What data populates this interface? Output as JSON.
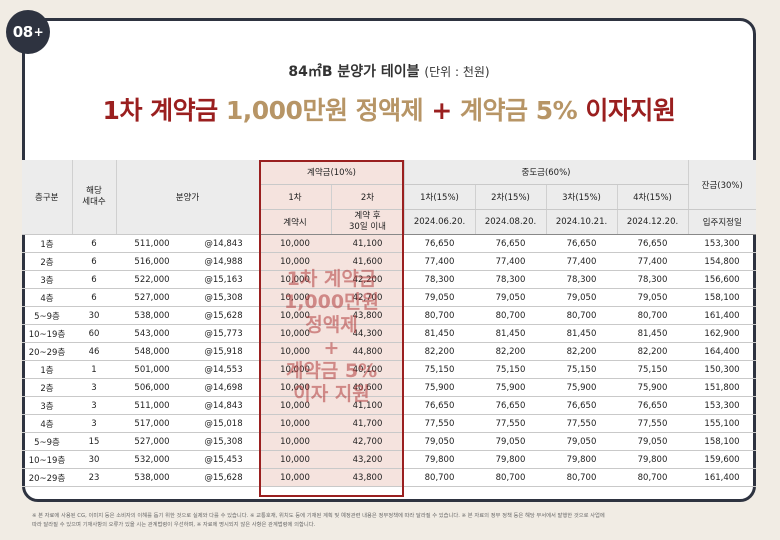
{
  "badge": {
    "number": "08",
    "plus": "+"
  },
  "subtitle": {
    "main": "84㎡B 분양가 테이블",
    "unit": "(단위 : 천원)"
  },
  "headline": {
    "part1": "1차 계약금",
    "part2": "1,000만원 정액제",
    "part3": "+",
    "part4": "계약금 5%",
    "part5": "이자지원"
  },
  "table": {
    "headers": {
      "floor": "층구분",
      "units": [
        "해당",
        "세대수"
      ],
      "price": "분양가",
      "contract": "계약금(10%)",
      "contract_1": "1차",
      "contract_2": "2차",
      "contract_1_when": "계약시",
      "contract_2_when": [
        "계약 후",
        "30일 이내"
      ],
      "middle": "중도금(60%)",
      "mid_cols": [
        "1차(15%)",
        "2차(15%)",
        "3차(15%)",
        "4차(15%)"
      ],
      "mid_dates": [
        "2024.06.20.",
        "2024.08.20.",
        "2024.10.21.",
        "2024.12.20."
      ],
      "balance": "잔금(30%)",
      "balance_when": "입주지정일"
    },
    "rows": [
      {
        "floor": "1층",
        "units": "6",
        "price": "511,000",
        "unit_price": "@14,843",
        "c1": "10,000",
        "c2": "41,100",
        "m1": "76,650",
        "m2": "76,650",
        "m3": "76,650",
        "m4": "76,650",
        "bal": "153,300"
      },
      {
        "floor": "2층",
        "units": "6",
        "price": "516,000",
        "unit_price": "@14,988",
        "c1": "10,000",
        "c2": "41,600",
        "m1": "77,400",
        "m2": "77,400",
        "m3": "77,400",
        "m4": "77,400",
        "bal": "154,800"
      },
      {
        "floor": "3층",
        "units": "6",
        "price": "522,000",
        "unit_price": "@15,163",
        "c1": "10,000",
        "c2": "42,200",
        "m1": "78,300",
        "m2": "78,300",
        "m3": "78,300",
        "m4": "78,300",
        "bal": "156,600"
      },
      {
        "floor": "4층",
        "units": "6",
        "price": "527,000",
        "unit_price": "@15,308",
        "c1": "10,000",
        "c2": "42,700",
        "m1": "79,050",
        "m2": "79,050",
        "m3": "79,050",
        "m4": "79,050",
        "bal": "158,100"
      },
      {
        "floor": "5~9층",
        "units": "30",
        "price": "538,000",
        "unit_price": "@15,628",
        "c1": "10,000",
        "c2": "43,800",
        "m1": "80,700",
        "m2": "80,700",
        "m3": "80,700",
        "m4": "80,700",
        "bal": "161,400"
      },
      {
        "floor": "10~19층",
        "units": "60",
        "price": "543,000",
        "unit_price": "@15,773",
        "c1": "10,000",
        "c2": "44,300",
        "m1": "81,450",
        "m2": "81,450",
        "m3": "81,450",
        "m4": "81,450",
        "bal": "162,900"
      },
      {
        "floor": "20~29층",
        "units": "46",
        "price": "548,000",
        "unit_price": "@15,918",
        "c1": "10,000",
        "c2": "44,800",
        "m1": "82,200",
        "m2": "82,200",
        "m3": "82,200",
        "m4": "82,200",
        "bal": "164,400"
      },
      {
        "floor": "1층",
        "units": "1",
        "price": "501,000",
        "unit_price": "@14,553",
        "c1": "10,000",
        "c2": "40,100",
        "m1": "75,150",
        "m2": "75,150",
        "m3": "75,150",
        "m4": "75,150",
        "bal": "150,300"
      },
      {
        "floor": "2층",
        "units": "3",
        "price": "506,000",
        "unit_price": "@14,698",
        "c1": "10,000",
        "c2": "40,600",
        "m1": "75,900",
        "m2": "75,900",
        "m3": "75,900",
        "m4": "75,900",
        "bal": "151,800"
      },
      {
        "floor": "3층",
        "units": "3",
        "price": "511,000",
        "unit_price": "@14,843",
        "c1": "10,000",
        "c2": "41,100",
        "m1": "76,650",
        "m2": "76,650",
        "m3": "76,650",
        "m4": "76,650",
        "bal": "153,300"
      },
      {
        "floor": "4층",
        "units": "3",
        "price": "517,000",
        "unit_price": "@15,018",
        "c1": "10,000",
        "c2": "41,700",
        "m1": "77,550",
        "m2": "77,550",
        "m3": "77,550",
        "m4": "77,550",
        "bal": "155,100"
      },
      {
        "floor": "5~9층",
        "units": "15",
        "price": "527,000",
        "unit_price": "@15,308",
        "c1": "10,000",
        "c2": "42,700",
        "m1": "79,050",
        "m2": "79,050",
        "m3": "79,050",
        "m4": "79,050",
        "bal": "158,100"
      },
      {
        "floor": "10~19층",
        "units": "30",
        "price": "532,000",
        "unit_price": "@15,453",
        "c1": "10,000",
        "c2": "43,200",
        "m1": "79,800",
        "m2": "79,800",
        "m3": "79,800",
        "m4": "79,800",
        "bal": "159,600"
      },
      {
        "floor": "20~29층",
        "units": "23",
        "price": "538,000",
        "unit_price": "@15,628",
        "c1": "10,000",
        "c2": "43,800",
        "m1": "80,700",
        "m2": "80,700",
        "m3": "80,700",
        "m4": "80,700",
        "bal": "161,400"
      }
    ]
  },
  "overlay": [
    "1차 계약금",
    "1,000만원",
    "정액제",
    "+",
    "계약금 5%",
    "이자 지원"
  ],
  "footnote": [
    "※ 본 자료에 사용된 CG, 이미지 등은 소비자의 이해를 돕기 위한 것으로 실제와 다를 수 있습니다.  ※ 교통호재, 위치도 등에 기재된 계획 및 예정관련 내용은 정부정책에 따라 달라질 수 있습니다.  ※ 본 자료의 정부 정책 등은 해당 부서에서 발행한 것으로 사업에",
    "따라 달라질 수 있으며 기재사항의 오류가 있을 시는 관계법령이 우선하며, ※ 자료에 명시되지 않은 사항은 관계법령에 의합니다."
  ]
}
